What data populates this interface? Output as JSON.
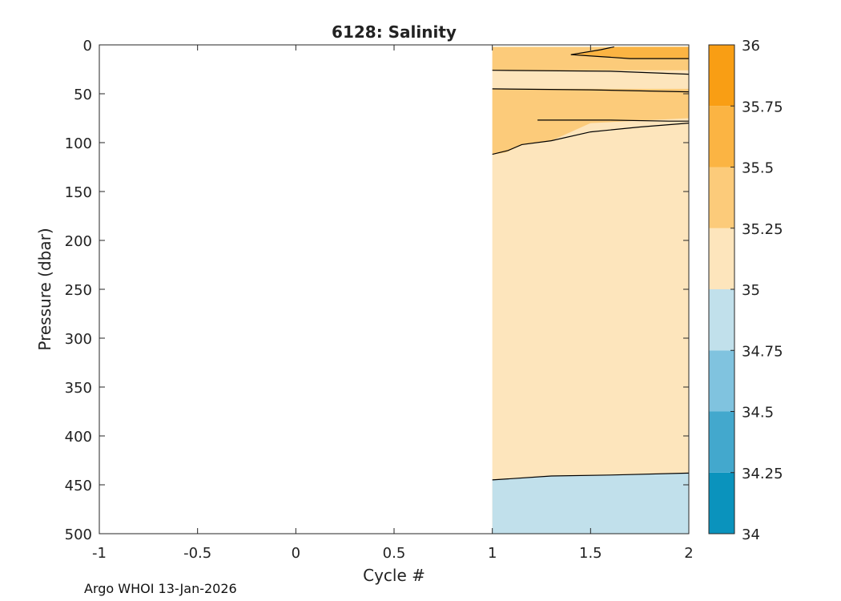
{
  "chart_data": {
    "type": "contour",
    "title": "6128:  Salinity",
    "xlabel": "Cycle #",
    "ylabel": "Pressure (dbar)",
    "xlim": [
      -1,
      2
    ],
    "ylim": [
      0,
      500
    ],
    "y_reversed": true,
    "x_ticks": [
      -1,
      -0.5,
      0,
      0.5,
      1,
      1.5,
      2
    ],
    "x_tick_labels": [
      "-1",
      "-0.5",
      "0",
      "0.5",
      "1",
      "1.5",
      "2"
    ],
    "y_ticks": [
      0,
      50,
      100,
      150,
      200,
      250,
      300,
      350,
      400,
      450,
      500
    ],
    "y_tick_labels": [
      "0",
      "50",
      "100",
      "150",
      "200",
      "250",
      "300",
      "350",
      "400",
      "450",
      "500"
    ],
    "data_x_range": [
      1,
      2
    ],
    "data_p_range": [
      2,
      500
    ],
    "colorbar": {
      "levels": [
        34,
        34.25,
        34.5,
        34.75,
        35,
        35.25,
        35.5,
        35.75,
        36
      ],
      "labels": [
        "34",
        "34.25",
        "34.5",
        "34.75",
        "35",
        "35.25",
        "35.5",
        "35.75",
        "36"
      ],
      "colors": [
        "#0a93bd",
        "#43a8cd",
        "#80c3df",
        "#c1e0eb",
        "#fde5bc",
        "#fccb7a",
        "#fbb443",
        "#f99e14"
      ]
    },
    "regions": [
      {
        "name": "upper-salty-band",
        "level_range": [
          35.25,
          35.5
        ],
        "color": "#fccb7a",
        "cycle": [
          1,
          2
        ],
        "pressure_top": [
          2,
          2
        ],
        "pressure_bottom": [
          26,
          26
        ]
      },
      {
        "name": "surface-max-lens",
        "level_range": [
          35.5,
          35.75
        ],
        "color": "#fbb443",
        "boundary": [
          [
            1.4,
            10
          ],
          [
            1.62,
            2
          ],
          [
            2,
            2
          ],
          [
            2,
            14
          ],
          [
            1.7,
            14
          ],
          [
            1.55,
            12
          ]
        ]
      },
      {
        "name": "mid-salty-band",
        "level_range": [
          35.25,
          35.5
        ],
        "color": "#fccb7a",
        "boundary": [
          [
            1,
            45
          ],
          [
            2,
            45
          ],
          [
            2,
            75
          ],
          [
            1.5,
            80
          ],
          [
            1.3,
            98
          ],
          [
            1.15,
            102
          ],
          [
            1.07,
            110
          ],
          [
            1,
            112
          ]
        ]
      },
      {
        "name": "deep-fresh-layer",
        "level_range": [
          34.75,
          35
        ],
        "color": "#c1e0eb",
        "boundary": [
          [
            1,
            445
          ],
          [
            1.3,
            441
          ],
          [
            1.6,
            440
          ],
          [
            2,
            438
          ],
          [
            2,
            500
          ],
          [
            1,
            500
          ]
        ]
      }
    ],
    "contours": [
      {
        "level": 35.25,
        "points": [
          [
            1,
            26
          ],
          [
            1.6,
            27
          ],
          [
            2,
            30
          ]
        ]
      },
      {
        "level": 35.25,
        "points": [
          [
            1,
            45
          ],
          [
            1.5,
            46
          ],
          [
            2,
            48
          ]
        ]
      },
      {
        "level": 35.25,
        "points": [
          [
            1,
            112
          ],
          [
            1.08,
            108
          ],
          [
            1.15,
            102
          ],
          [
            1.3,
            98
          ],
          [
            1.5,
            89
          ],
          [
            1.75,
            84
          ],
          [
            2,
            80
          ]
        ]
      },
      {
        "level": 35.25,
        "points": [
          [
            1.23,
            77
          ],
          [
            1.6,
            77
          ],
          [
            1.9,
            78
          ],
          [
            2,
            78
          ]
        ]
      },
      {
        "level": 35.5,
        "points": [
          [
            1.4,
            10
          ],
          [
            1.55,
            5
          ],
          [
            1.62,
            2
          ]
        ]
      },
      {
        "level": 35.5,
        "points": [
          [
            1.4,
            10
          ],
          [
            1.55,
            12
          ],
          [
            1.7,
            14
          ],
          [
            2,
            14
          ]
        ]
      },
      {
        "level": 35.0,
        "points": [
          [
            1,
            445
          ],
          [
            1.3,
            441
          ],
          [
            1.6,
            440
          ],
          [
            2,
            438
          ]
        ]
      }
    ],
    "footer": "Argo WHOI 13-Jan-2026"
  }
}
